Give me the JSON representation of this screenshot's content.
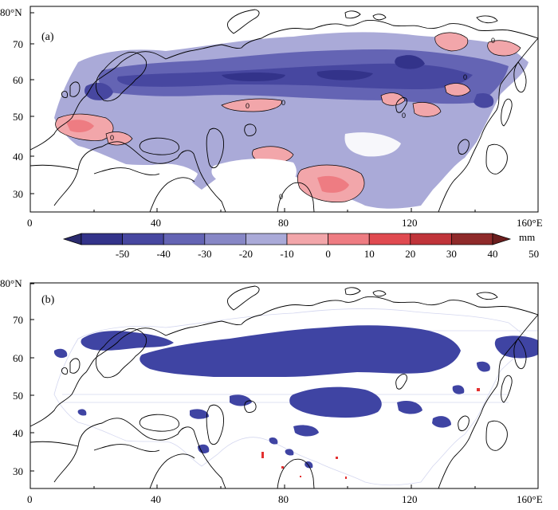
{
  "panel_a": {
    "tag": "(a)",
    "y_ticks": [
      "80°N",
      "70",
      "60",
      "50",
      "40",
      "30"
    ],
    "x_ticks": [
      "0",
      "40",
      "80",
      "120",
      "160°E"
    ],
    "contour_labels": [
      "0",
      "0",
      "0",
      "0",
      "0",
      "0",
      "0"
    ]
  },
  "panel_b": {
    "tag": "(b)",
    "y_ticks": [
      "80°N",
      "70",
      "60",
      "50",
      "40",
      "30"
    ],
    "x_ticks": [
      "0",
      "40",
      "80",
      "120",
      "160°E"
    ]
  },
  "colorbar": {
    "unit": "mm",
    "labels": [
      "-50",
      "-40",
      "-30",
      "-20",
      "-10",
      "0",
      "10",
      "20",
      "30",
      "40",
      "50"
    ],
    "colors": [
      "#2a2a6e",
      "#33338a",
      "#4747a0",
      "#6464b4",
      "#8787c6",
      "#aaaad8",
      "#f2a6aa",
      "#ee7c82",
      "#e04a50",
      "#c0343a",
      "#8f2a2a",
      "#6b1e1e"
    ]
  },
  "colors": {
    "neg_dark": "#33338a",
    "neg_mid": "#6464b4",
    "neg_light": "#aaaad8",
    "pos_light": "#f2a6aa",
    "pos_mid": "#ee7c82",
    "sig_neg": "#3f44a3",
    "sig_pos": "#e33030",
    "coast": "#000000",
    "grid_faint": "#d4d7ef"
  }
}
